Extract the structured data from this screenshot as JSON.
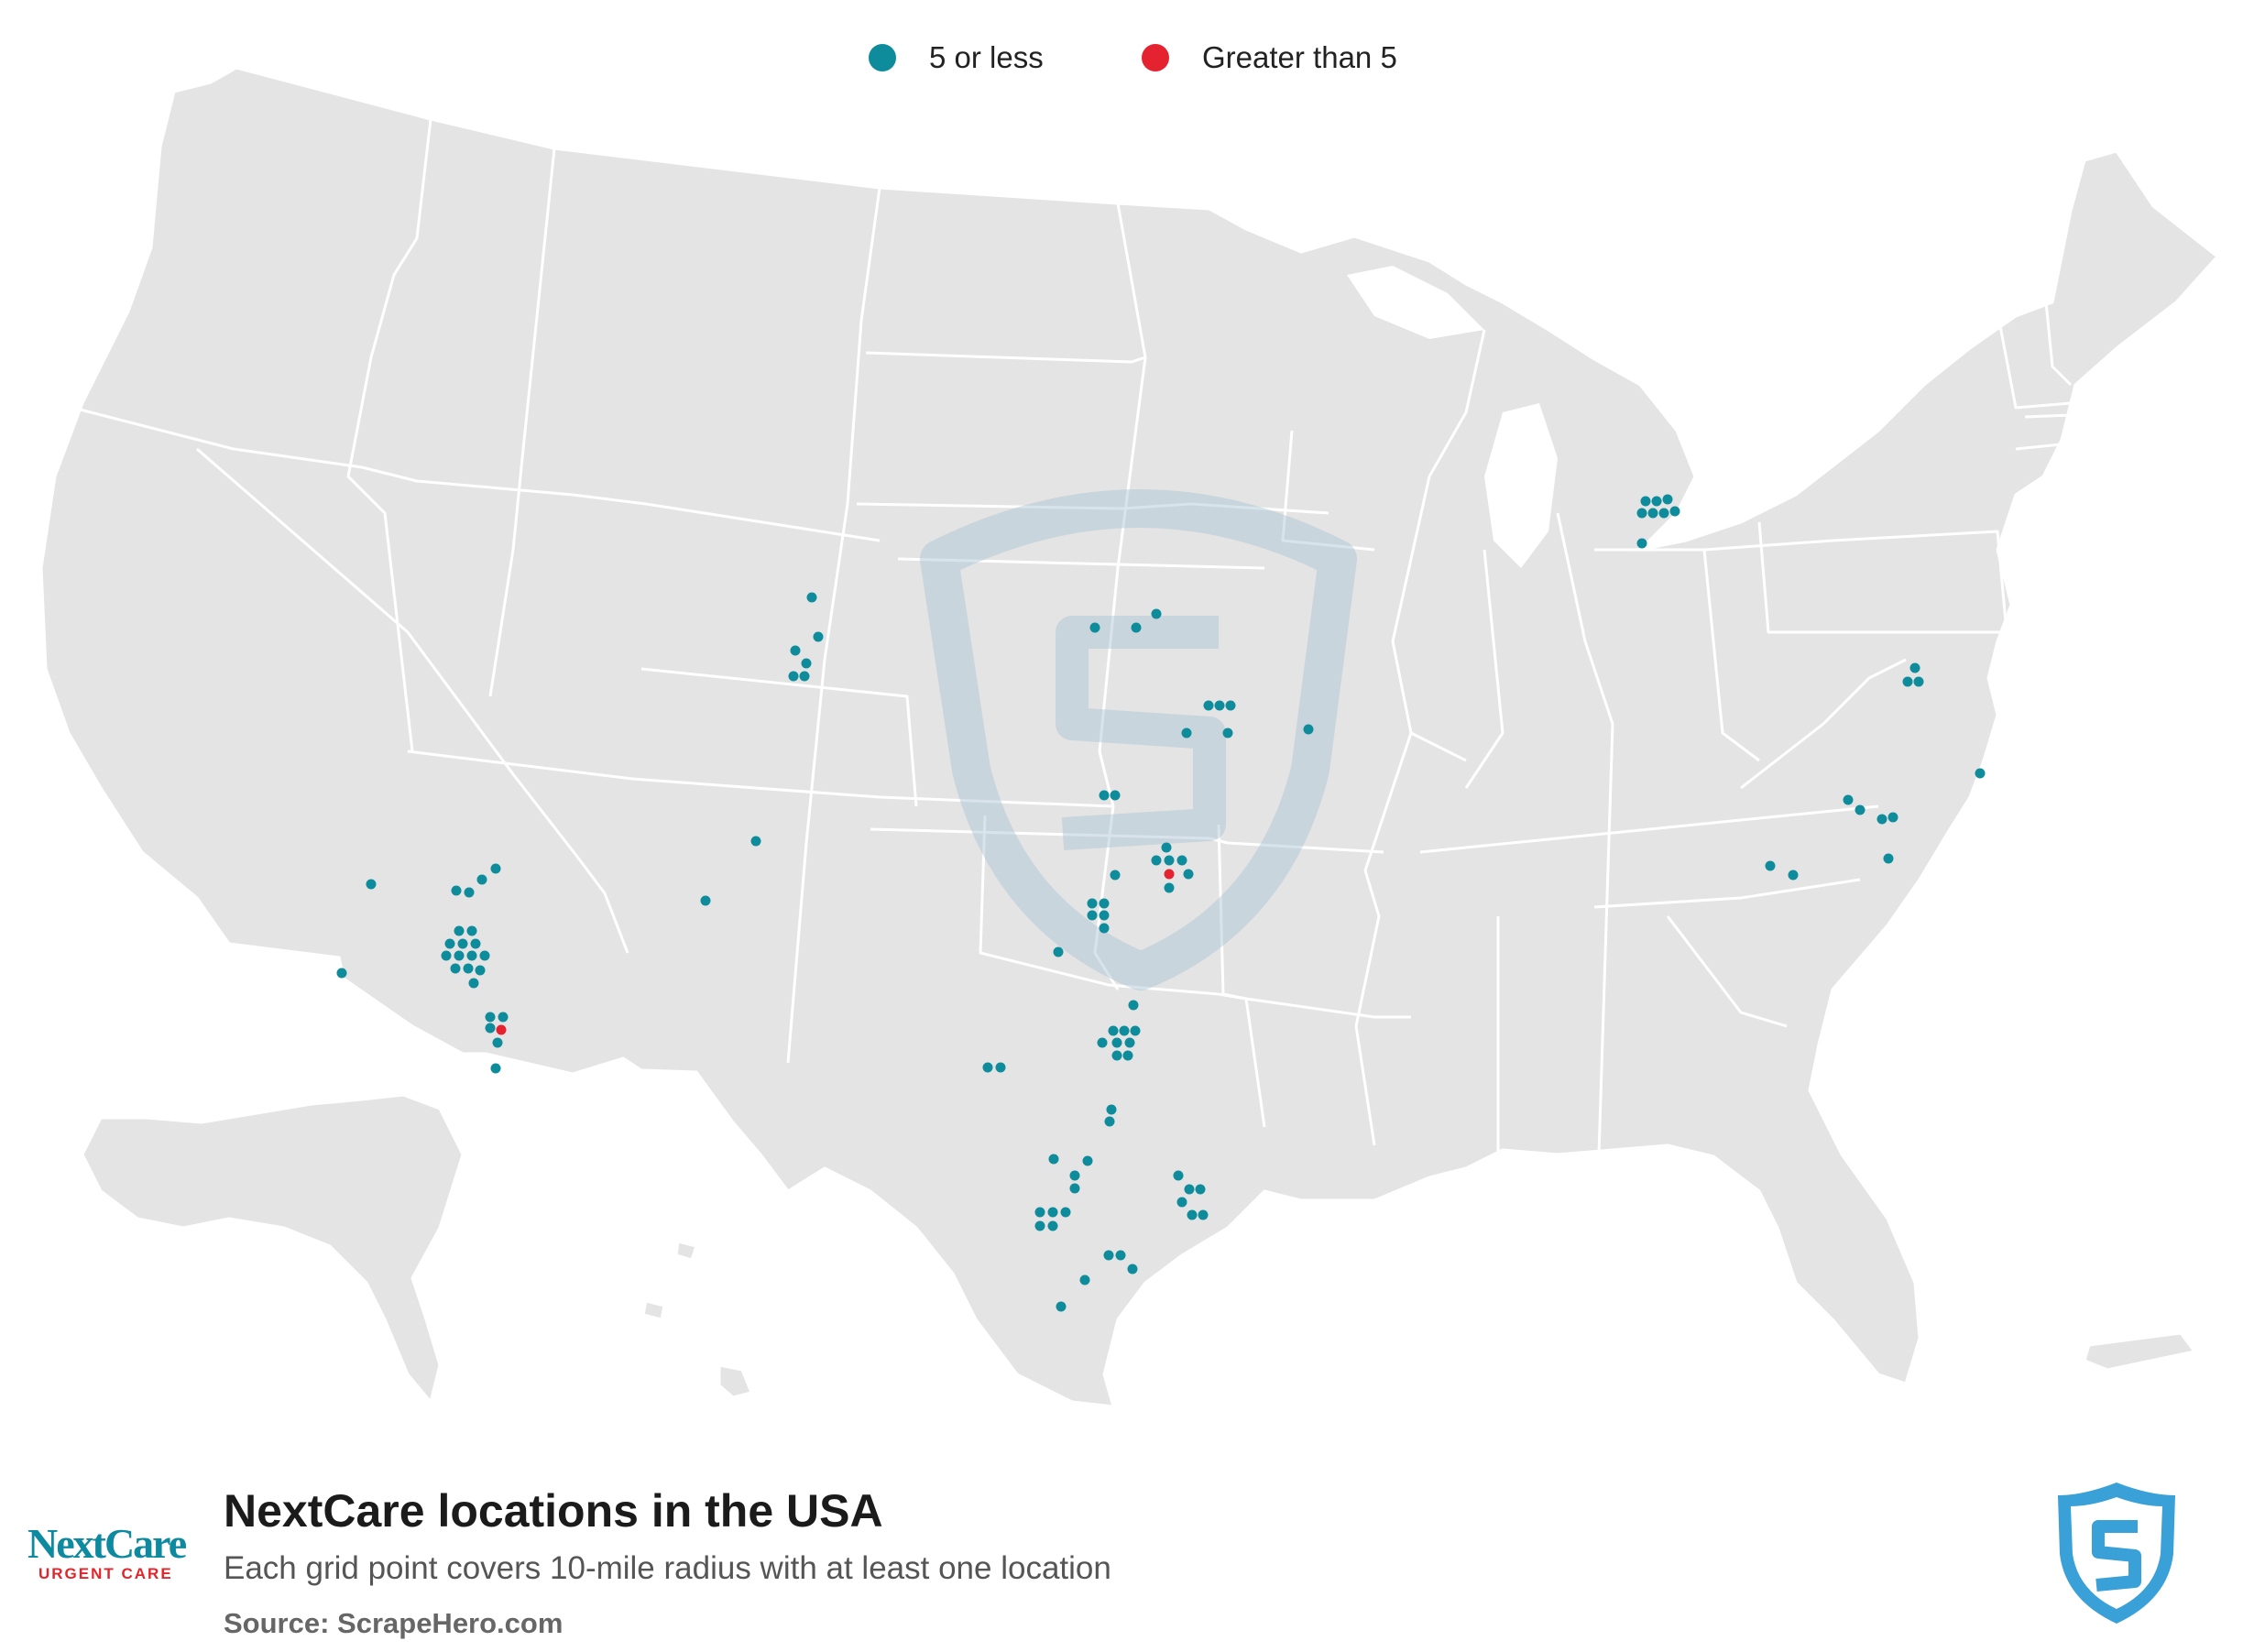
{
  "legend": {
    "items": [
      {
        "label": "5 or less",
        "color": "#0e8c9c"
      },
      {
        "label": "Greater than 5",
        "color": "#e42230"
      }
    ]
  },
  "footer": {
    "title": "NextCare locations in the USA",
    "subtitle": "Each grid point covers 10-mile radius with at least one location",
    "source": "Source: ScrapeHero.com"
  },
  "brand": {
    "name": "NextCare",
    "tagline": "URGENT CARE"
  },
  "colors": {
    "land": "#e4e4e4",
    "borders": "#ffffff",
    "low": "#0e8c9c",
    "high": "#e42230",
    "shield": "#3aa0d8",
    "watermark": "#a9c3d3"
  },
  "map": {
    "region": "Contiguous USA with Alaska and Hawaii insets"
  },
  "chart_data": {
    "type": "scatter",
    "projection": "USA Albers (screen coordinates)",
    "categories": [
      "5 or less",
      "Greater than 5"
    ],
    "points": [
      [
        405,
        965,
        0
      ],
      [
        498,
        972,
        0
      ],
      [
        512,
        974,
        0
      ],
      [
        526,
        960,
        0
      ],
      [
        541,
        948,
        0
      ],
      [
        373,
        1062,
        0
      ],
      [
        501,
        1016,
        0
      ],
      [
        515,
        1016,
        0
      ],
      [
        491,
        1030,
        0
      ],
      [
        505,
        1030,
        0
      ],
      [
        519,
        1030,
        0
      ],
      [
        487,
        1043,
        0
      ],
      [
        501,
        1043,
        0
      ],
      [
        515,
        1043,
        0
      ],
      [
        529,
        1043,
        0
      ],
      [
        497,
        1057,
        0
      ],
      [
        511,
        1057,
        0
      ],
      [
        524,
        1059,
        0
      ],
      [
        517,
        1073,
        0
      ],
      [
        535,
        1110,
        0
      ],
      [
        549,
        1110,
        0
      ],
      [
        535,
        1122,
        0
      ],
      [
        547,
        1124,
        1
      ],
      [
        543,
        1138,
        0
      ],
      [
        541,
        1166,
        0
      ],
      [
        886,
        652,
        0
      ],
      [
        893,
        695,
        0
      ],
      [
        868,
        710,
        0
      ],
      [
        880,
        724,
        0
      ],
      [
        866,
        738,
        0
      ],
      [
        878,
        738,
        0
      ],
      [
        825,
        918,
        0
      ],
      [
        770,
        983,
        0
      ],
      [
        1195,
        685,
        0
      ],
      [
        1240,
        685,
        0
      ],
      [
        1262,
        670,
        0
      ],
      [
        1319,
        770,
        0
      ],
      [
        1331,
        770,
        0
      ],
      [
        1343,
        770,
        0
      ],
      [
        1295,
        800,
        0
      ],
      [
        1340,
        800,
        0
      ],
      [
        1428,
        796,
        0
      ],
      [
        1205,
        868,
        0
      ],
      [
        1217,
        868,
        0
      ],
      [
        1273,
        925,
        0
      ],
      [
        1262,
        939,
        0
      ],
      [
        1276,
        939,
        0
      ],
      [
        1290,
        939,
        0
      ],
      [
        1276,
        954,
        1
      ],
      [
        1297,
        954,
        0
      ],
      [
        1217,
        955,
        0
      ],
      [
        1276,
        969,
        0
      ],
      [
        1192,
        986,
        0
      ],
      [
        1205,
        986,
        0
      ],
      [
        1192,
        999,
        0
      ],
      [
        1205,
        999,
        0
      ],
      [
        1205,
        1013,
        0
      ],
      [
        1155,
        1039,
        0
      ],
      [
        1237,
        1097,
        0
      ],
      [
        1215,
        1125,
        0
      ],
      [
        1227,
        1125,
        0
      ],
      [
        1239,
        1125,
        0
      ],
      [
        1203,
        1138,
        0
      ],
      [
        1219,
        1138,
        0
      ],
      [
        1233,
        1138,
        0
      ],
      [
        1219,
        1152,
        0
      ],
      [
        1231,
        1152,
        0
      ],
      [
        1078,
        1165,
        0
      ],
      [
        1092,
        1165,
        0
      ],
      [
        1213,
        1211,
        0
      ],
      [
        1211,
        1224,
        0
      ],
      [
        1150,
        1265,
        0
      ],
      [
        1187,
        1267,
        0
      ],
      [
        1173,
        1283,
        0
      ],
      [
        1173,
        1297,
        0
      ],
      [
        1135,
        1323,
        0
      ],
      [
        1149,
        1323,
        0
      ],
      [
        1163,
        1323,
        0
      ],
      [
        1135,
        1338,
        0
      ],
      [
        1149,
        1338,
        0
      ],
      [
        1286,
        1283,
        0
      ],
      [
        1298,
        1298,
        0
      ],
      [
        1310,
        1298,
        0
      ],
      [
        1290,
        1312,
        0
      ],
      [
        1301,
        1326,
        0
      ],
      [
        1313,
        1326,
        0
      ],
      [
        1210,
        1370,
        0
      ],
      [
        1223,
        1370,
        0
      ],
      [
        1236,
        1385,
        0
      ],
      [
        1184,
        1397,
        0
      ],
      [
        1158,
        1426,
        0
      ],
      [
        1796,
        547,
        0
      ],
      [
        1808,
        547,
        0
      ],
      [
        1820,
        545,
        0
      ],
      [
        1792,
        560,
        0
      ],
      [
        1804,
        560,
        0
      ],
      [
        1816,
        560,
        0
      ],
      [
        1828,
        558,
        0
      ],
      [
        1792,
        593,
        0
      ],
      [
        2090,
        729,
        0
      ],
      [
        2082,
        744,
        0
      ],
      [
        2094,
        744,
        0
      ],
      [
        2017,
        873,
        0
      ],
      [
        2030,
        884,
        0
      ],
      [
        2054,
        894,
        0
      ],
      [
        2066,
        892,
        0
      ],
      [
        2061,
        937,
        0
      ],
      [
        1932,
        945,
        0
      ],
      [
        1957,
        955,
        0
      ],
      [
        2161,
        844,
        0
      ]
    ]
  }
}
